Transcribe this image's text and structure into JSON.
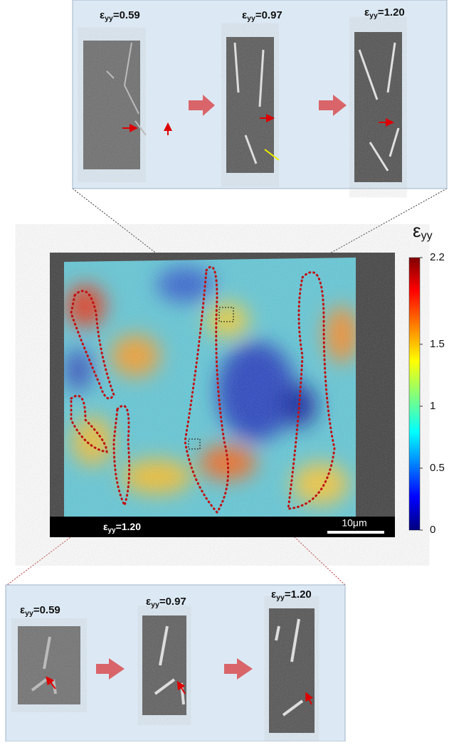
{
  "top_panel": {
    "frames": [
      {
        "symbol": "ε",
        "subscript": "yy",
        "equals": "=0.59"
      },
      {
        "symbol": "ε",
        "subscript": "yy",
        "equals": "=0.97"
      },
      {
        "symbol": "ε",
        "subscript": "yy",
        "equals": "=1.20"
      }
    ]
  },
  "main_map": {
    "label": {
      "symbol": "ε",
      "subscript": "yy",
      "equals": "=1.20"
    },
    "scale_bar": "10μm"
  },
  "colorbar": {
    "symbol": "ε",
    "subscript": "yy",
    "range": [
      0,
      2.2
    ],
    "ticks": [
      0,
      0.5,
      1,
      1.5,
      2.2
    ]
  },
  "bottom_panel": {
    "frames": [
      {
        "symbol": "ε",
        "subscript": "yy",
        "equals": "=0.59"
      },
      {
        "symbol": "ε",
        "subscript": "yy",
        "equals": "=0.97"
      },
      {
        "symbol": "ε",
        "subscript": "yy",
        "equals": "=1.20"
      }
    ]
  }
}
